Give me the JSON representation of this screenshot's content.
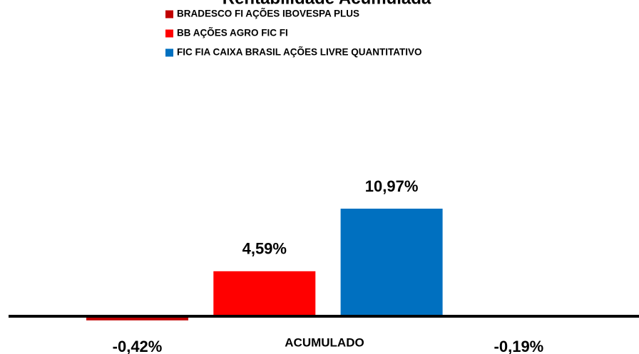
{
  "chart_data": {
    "type": "bar",
    "title": "Rentabilidade Acumulada",
    "categories": [
      "ACUMULADO"
    ],
    "series": [
      {
        "name": "BRADESCO FI AÇÕES IBOVESPA PLUS",
        "color": "#c00000",
        "values": [
          -0.42
        ],
        "value_labels": [
          "-0,42%"
        ]
      },
      {
        "name": "BB AÇÕES AGRO FIC FI",
        "color": "#ff0000",
        "values": [
          4.59
        ],
        "value_labels": [
          "4,59%"
        ]
      },
      {
        "name": "FIC FIA CAIXA BRASIL AÇÕES LIVRE QUANTITATIVO",
        "color": "#0070c0",
        "values": [
          10.97
        ],
        "value_labels": [
          "10,97%"
        ]
      },
      {
        "name": null,
        "color": "#ffffff",
        "values": [
          -0.19
        ],
        "value_labels": [
          "-0,19%"
        ]
      }
    ]
  }
}
